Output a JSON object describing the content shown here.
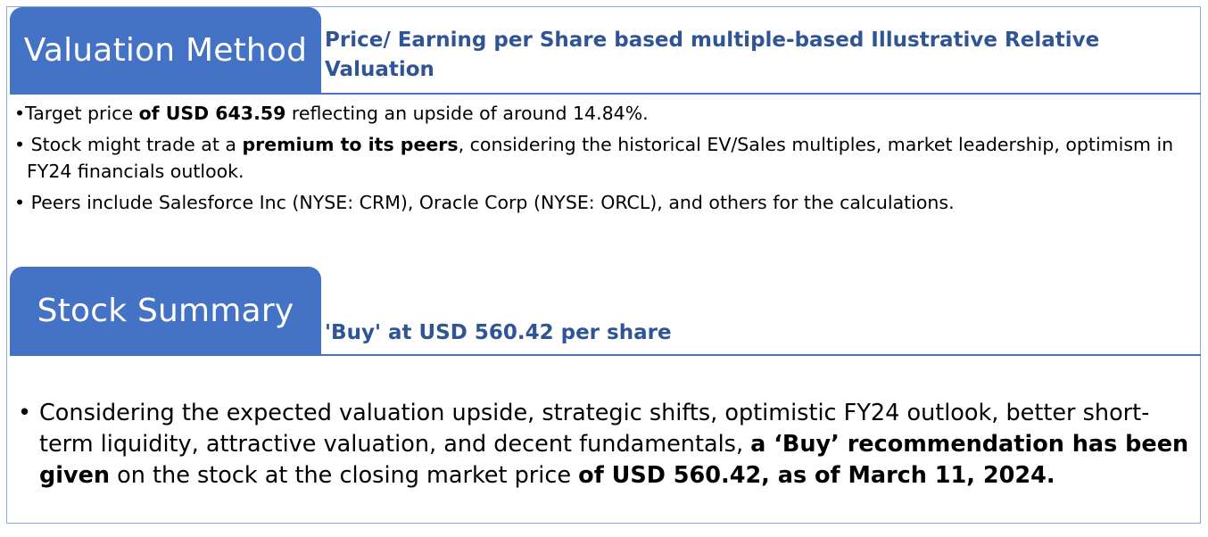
{
  "valuation": {
    "tab_label": "Valuation Method",
    "heading": "Price/ Earning per Share based multiple-based Illustrative Relative Valuation",
    "bullets": [
      {
        "marker": "•",
        "pre": "Target price ",
        "bold": "of USD 643.59",
        "post": " reflecting an upside of around 14.84%."
      },
      {
        "marker": "• ",
        "pre": "Stock might trade at a ",
        "bold": "premium to its peers",
        "post": ", considering the historical EV/Sales multiples, market leadership, optimism in FY24 financials outlook."
      },
      {
        "marker": "• ",
        "pre": "Peers include Salesforce Inc (NYSE: CRM), Oracle Corp (NYSE: ORCL), and others for the calculations.",
        "bold": "",
        "post": ""
      }
    ]
  },
  "summary": {
    "tab_label": "Stock Summary",
    "heading": "'Buy' at USD 560.42 per share",
    "marker": "•",
    "text_1": "Considering the expected valuation upside, strategic shifts,  optimistic FY24 outlook, better short-term liquidity, attractive valuation, and decent fundamentals, ",
    "bold_1": "a ‘Buy’ recommendation has been given",
    "text_2": " on the stock at the closing market price ",
    "bold_2": "of USD 560.42, as of March 11, 2024."
  },
  "colors": {
    "accent": "#4472c4",
    "heading": "#2f5597",
    "frame": "#8ea9db"
  }
}
